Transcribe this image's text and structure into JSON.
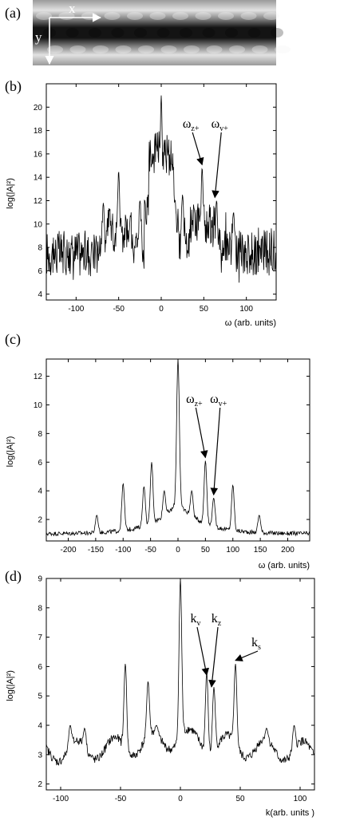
{
  "panel_labels": [
    "(a)",
    "(b)",
    "(c)",
    "(d)"
  ],
  "image_axes": {
    "x_label": "x",
    "y_label": "y"
  },
  "chart_data": [
    {
      "panel": "(b)",
      "type": "line",
      "xlabel": "ω (arb. units)",
      "ylabel": "log(|A|²)",
      "xlim": [
        -135,
        135
      ],
      "ylim": [
        3.5,
        22
      ],
      "xticks": [
        -100,
        -50,
        0,
        50,
        100
      ],
      "yticks": [
        4,
        6,
        8,
        10,
        12,
        14,
        16,
        18,
        20
      ],
      "peaks": [
        [
          -50,
          14.5
        ],
        [
          -68,
          11.8
        ],
        [
          -25,
          12.0
        ],
        [
          -5,
          16.5
        ],
        [
          0,
          21.0
        ],
        [
          5,
          16.0
        ],
        [
          25,
          12.5
        ],
        [
          48,
          14.8
        ],
        [
          65,
          12.0
        ],
        [
          85,
          11.0
        ]
      ],
      "annotations": [
        {
          "label": "ω",
          "sub": "z+",
          "x": 48,
          "y": 14.8
        },
        {
          "label": "ω",
          "sub": "v+",
          "x": 63,
          "y": 12.0
        }
      ],
      "baseline": {
        "type": "noise",
        "center": 7.5,
        "spread": 2.0
      }
    },
    {
      "panel": "(c)",
      "type": "line",
      "xlabel": "ω (arb. units)",
      "ylabel": "log(|A|²)",
      "xlim": [
        -240,
        240
      ],
      "ylim": [
        0.5,
        13.2
      ],
      "xticks": [
        -200,
        -150,
        -100,
        -50,
        0,
        50,
        100,
        150,
        200
      ],
      "yticks": [
        2,
        4,
        6,
        8,
        10,
        12
      ],
      "peaks": [
        [
          -148,
          2.3
        ],
        [
          -100,
          4.5
        ],
        [
          -62,
          4.3
        ],
        [
          -48,
          6.0
        ],
        [
          -25,
          4.0
        ],
        [
          0,
          13.2
        ],
        [
          25,
          4.0
        ],
        [
          50,
          6.1
        ],
        [
          65,
          3.5
        ],
        [
          100,
          4.4
        ],
        [
          148,
          2.3
        ]
      ],
      "annotations": [
        {
          "label": "ω",
          "sub": "z+",
          "x": 50,
          "y": 6.1
        },
        {
          "label": "ω",
          "sub": "v+",
          "x": 65,
          "y": 3.5
        }
      ],
      "baseline": {
        "type": "decay",
        "center": 1.0,
        "spread": 0.15
      }
    },
    {
      "panel": "(d)",
      "type": "line",
      "xlabel": "k(arb. units )",
      "ylabel": "log(|A|²)",
      "xlim": [
        -112,
        112
      ],
      "ylim": [
        1.8,
        9.0
      ],
      "xticks": [
        -100,
        -50,
        0,
        50,
        100
      ],
      "yticks": [
        2,
        3,
        4,
        5,
        6,
        7,
        8,
        9
      ],
      "peaks": [
        [
          -92,
          4.0
        ],
        [
          -80,
          3.9
        ],
        [
          -46,
          6.1
        ],
        [
          -27,
          5.5
        ],
        [
          -20,
          4.0
        ],
        [
          0,
          9.0
        ],
        [
          22,
          5.8
        ],
        [
          28,
          5.3
        ],
        [
          46,
          6.1
        ],
        [
          72,
          3.9
        ],
        [
          95,
          4.0
        ]
      ],
      "annotations": [
        {
          "label": "k",
          "sub": "v",
          "x": 22,
          "y": 5.6
        },
        {
          "label": "k",
          "sub": "z",
          "x": 26,
          "y": 5.2
        },
        {
          "label": "k",
          "sub": "s",
          "x": 46,
          "y": 6.1
        }
      ],
      "baseline": {
        "type": "smooth",
        "center": 3.0,
        "spread": 0.15
      }
    }
  ]
}
